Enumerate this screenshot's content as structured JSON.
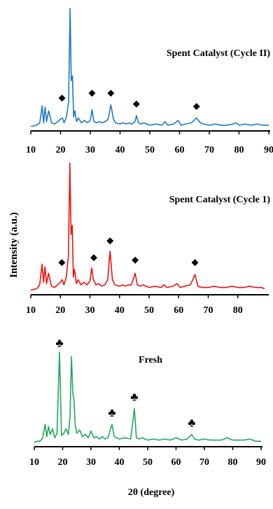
{
  "chart_data": {
    "type": "line",
    "ylabel": "Intensity (a.u.)",
    "xlabel": "2θ (degree)",
    "panels": [
      {
        "name": "cycle2",
        "title": "Spent Catalyst (Cycle II)",
        "color": "#1f78c8",
        "xlim": [
          10,
          90
        ],
        "ylim": [
          0,
          100
        ],
        "xticks": [
          10,
          20,
          30,
          40,
          50,
          60,
          70,
          80,
          90
        ],
        "marker_glyph": "◆",
        "marker_name": "diamond-marker",
        "markers": [
          {
            "x": 20.5,
            "y": 20
          },
          {
            "x": 30.6,
            "y": 24
          },
          {
            "x": 36.9,
            "y": 24
          },
          {
            "x": 45.5,
            "y": 15
          },
          {
            "x": 65.7,
            "y": 13
          }
        ],
        "x": [
          10,
          12,
          13,
          13.8,
          14.3,
          14.8,
          15.3,
          16,
          17,
          18,
          19,
          20,
          20.6,
          21.2,
          22,
          22.7,
          23.2,
          23.6,
          24,
          24.4,
          24.8,
          25.4,
          26,
          27,
          28,
          29,
          30,
          30.6,
          31.2,
          32,
          33,
          34,
          35,
          36,
          36.9,
          37.8,
          38.5,
          40,
          41,
          42,
          43,
          44,
          45,
          45.5,
          46.2,
          47,
          48,
          50,
          52,
          54,
          55.2,
          56,
          58,
          59.5,
          60.5,
          62,
          64,
          65.7,
          67,
          68,
          70,
          72,
          74,
          76,
          78,
          79,
          80,
          82,
          84,
          86,
          88,
          90
        ],
        "y": [
          2,
          3,
          5,
          19,
          5,
          18,
          6,
          15,
          5,
          4,
          6,
          8,
          9,
          5,
          10,
          22,
          100,
          40,
          44,
          10,
          15,
          6,
          9,
          5,
          7,
          5,
          7,
          16,
          6,
          5,
          6,
          5,
          6,
          8,
          20,
          8,
          5,
          4,
          5,
          4,
          5,
          4,
          6,
          11,
          5,
          4,
          5,
          3,
          4,
          3,
          6,
          3,
          4,
          7,
          3,
          4,
          5,
          9,
          5,
          4,
          3,
          4,
          3,
          3,
          4,
          5,
          3,
          4,
          3,
          4,
          3,
          3
        ]
      },
      {
        "name": "cycle1",
        "title": "Spent Catalyst (Cycle 1)",
        "color": "#ee1111",
        "xlim": [
          10,
          90
        ],
        "ylim": [
          0,
          100
        ],
        "xticks": [
          10,
          20,
          30,
          40,
          50,
          60,
          70,
          80
        ],
        "marker_glyph": "◆",
        "marker_name": "diamond-marker",
        "markers": [
          {
            "x": 20.5,
            "y": 18
          },
          {
            "x": 31.3,
            "y": 22
          },
          {
            "x": 36.8,
            "y": 35
          },
          {
            "x": 45.3,
            "y": 20
          },
          {
            "x": 65.5,
            "y": 18
          }
        ],
        "x": [
          10,
          12,
          13,
          13.8,
          14.3,
          14.8,
          15.3,
          16,
          17,
          18,
          19,
          20,
          20.6,
          21.2,
          22,
          22.7,
          23.2,
          23.6,
          24,
          24.4,
          24.8,
          25.4,
          26,
          27,
          28,
          29,
          30,
          30.6,
          31.2,
          32,
          33,
          34,
          35,
          36,
          36.8,
          37.6,
          38.5,
          40,
          41,
          42,
          43,
          44,
          45.3,
          46,
          47,
          48,
          50,
          52,
          54,
          55,
          56,
          58,
          59.5,
          60.5,
          62,
          64,
          65.5,
          66.5,
          68,
          70,
          72,
          74,
          76,
          78,
          80,
          82,
          84,
          86,
          88,
          89
        ],
        "y": [
          2,
          3,
          6,
          22,
          8,
          20,
          7,
          15,
          5,
          4,
          6,
          8,
          10,
          6,
          12,
          28,
          100,
          45,
          52,
          12,
          18,
          7,
          10,
          6,
          8,
          6,
          9,
          19,
          10,
          6,
          7,
          5,
          6,
          10,
          32,
          10,
          6,
          5,
          6,
          5,
          6,
          6,
          15,
          6,
          5,
          6,
          4,
          5,
          4,
          6,
          4,
          5,
          7,
          4,
          5,
          6,
          14,
          5,
          4,
          4,
          5,
          4,
          4,
          5,
          4,
          4,
          5,
          4,
          4,
          3
        ]
      },
      {
        "name": "fresh",
        "title": "Fresh",
        "color": "#1faa5a",
        "xlim": [
          10,
          90
        ],
        "ylim": [
          0,
          100
        ],
        "xticks": [
          10,
          20,
          30,
          40,
          50,
          60,
          70,
          80,
          90
        ],
        "marker_glyph": "♣",
        "marker_name": "club-marker",
        "markers": [
          {
            "x": 18.9,
            "y": 83
          },
          {
            "x": 37.4,
            "y": 21
          },
          {
            "x": 45.3,
            "y": 35
          },
          {
            "x": 65.5,
            "y": 12
          }
        ],
        "x": [
          10,
          11,
          12,
          13,
          13.8,
          14.4,
          15,
          15.6,
          16.4,
          17.2,
          18,
          18.9,
          19.6,
          20.4,
          21.2,
          22,
          22.6,
          23.1,
          23.6,
          24,
          24.4,
          25,
          26,
          27,
          28,
          29,
          30,
          31,
          32,
          33,
          34,
          35,
          36,
          37.4,
          38.2,
          39,
          40,
          42,
          44,
          45.3,
          46,
          47,
          48,
          50,
          52,
          54,
          56,
          58,
          60,
          62,
          64,
          65.5,
          66.5,
          68,
          70,
          72,
          74,
          76,
          78,
          80,
          82,
          84,
          86,
          88,
          90
        ],
        "y": [
          2,
          3,
          3,
          6,
          18,
          7,
          16,
          9,
          14,
          6,
          10,
          82,
          8,
          10,
          14,
          9,
          24,
          78,
          45,
          40,
          18,
          10,
          13,
          7,
          9,
          6,
          12,
          6,
          7,
          5,
          7,
          5,
          6,
          18,
          7,
          6,
          5,
          6,
          5,
          32,
          6,
          5,
          6,
          4,
          5,
          4,
          5,
          4,
          6,
          4,
          5,
          9,
          5,
          4,
          5,
          4,
          4,
          4,
          6,
          4,
          4,
          4,
          5,
          3,
          3
        ]
      }
    ]
  }
}
